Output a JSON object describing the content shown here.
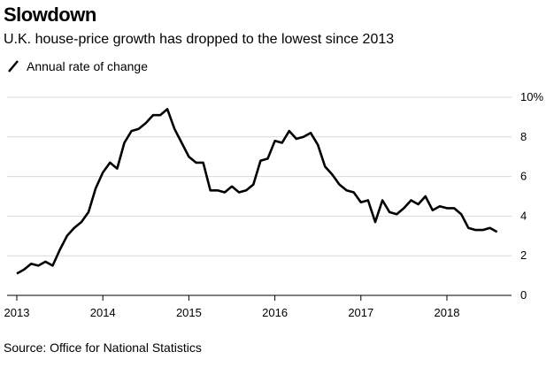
{
  "chart_data": {
    "type": "line",
    "title": "Slowdown",
    "subtitle": "U.K. house-price growth has dropped to the lowest since 2013",
    "legend": [
      {
        "name": "Annual rate of change",
        "color": "#000000"
      }
    ],
    "source": "Source: Office for National Statistics",
    "xlabel": "",
    "ylabel": "",
    "xlim": [
      2013,
      2018.917
    ],
    "ylim": [
      0,
      10
    ],
    "x_ticks": [
      {
        "value": 2013,
        "label": "2013"
      },
      {
        "value": 2014,
        "label": "2014"
      },
      {
        "value": 2015,
        "label": "2015"
      },
      {
        "value": 2016,
        "label": "2016"
      },
      {
        "value": 2017,
        "label": "2017"
      },
      {
        "value": 2018,
        "label": "2018"
      }
    ],
    "y_ticks": [
      {
        "value": 0,
        "label": "0"
      },
      {
        "value": 2,
        "label": "2"
      },
      {
        "value": 4,
        "label": "4"
      },
      {
        "value": 6,
        "label": "6"
      },
      {
        "value": 8,
        "label": "8"
      },
      {
        "value": 10,
        "label": "10%"
      }
    ],
    "grid": true,
    "series": [
      {
        "name": "Annual rate of change",
        "x": [
          2013.0,
          2013.083,
          2013.167,
          2013.25,
          2013.333,
          2013.417,
          2013.5,
          2013.583,
          2013.667,
          2013.75,
          2013.833,
          2013.917,
          2014.0,
          2014.083,
          2014.167,
          2014.25,
          2014.333,
          2014.417,
          2014.5,
          2014.583,
          2014.667,
          2014.75,
          2014.833,
          2014.917,
          2015.0,
          2015.083,
          2015.167,
          2015.25,
          2015.333,
          2015.417,
          2015.5,
          2015.583,
          2015.667,
          2015.75,
          2015.833,
          2015.917,
          2016.0,
          2016.083,
          2016.167,
          2016.25,
          2016.333,
          2016.417,
          2016.5,
          2016.583,
          2016.667,
          2016.75,
          2016.833,
          2016.917,
          2017.0,
          2017.083,
          2017.167,
          2017.25,
          2017.333,
          2017.417,
          2017.5,
          2017.583,
          2017.667,
          2017.75,
          2017.833,
          2017.917,
          2018.0,
          2018.083,
          2018.167,
          2018.25,
          2018.333,
          2018.417,
          2018.5,
          2018.583
        ],
        "values": [
          1.1,
          1.3,
          1.6,
          1.5,
          1.7,
          1.5,
          2.3,
          3.0,
          3.4,
          3.7,
          4.2,
          5.4,
          6.2,
          6.7,
          6.4,
          7.7,
          8.3,
          8.4,
          8.7,
          9.1,
          9.1,
          9.4,
          8.4,
          7.7,
          7.0,
          6.7,
          6.7,
          5.3,
          5.3,
          5.2,
          5.5,
          5.2,
          5.3,
          5.6,
          6.8,
          6.9,
          7.8,
          7.7,
          8.3,
          7.9,
          8.0,
          8.2,
          7.6,
          6.5,
          6.1,
          5.6,
          5.3,
          5.2,
          4.7,
          4.8,
          3.7,
          4.8,
          4.2,
          4.1,
          4.4,
          4.8,
          4.6,
          5.0,
          4.3,
          4.5,
          4.4,
          4.4,
          4.1,
          3.4,
          3.3,
          3.3,
          3.4,
          3.2
        ]
      }
    ]
  }
}
